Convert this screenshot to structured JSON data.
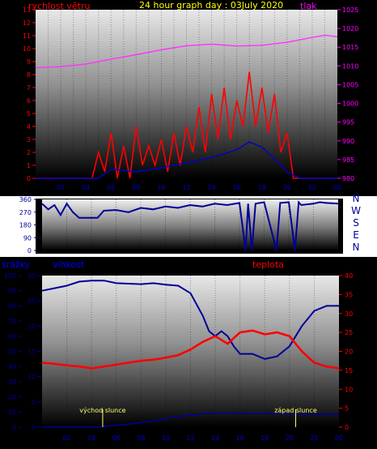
{
  "colors": {
    "frame": "#000000",
    "tick_left": "#ff0000",
    "tick_right_pressure": "#ff00ff",
    "wind": "#ff0000",
    "gust": "#0000cc",
    "pressure": "#ff33ff",
    "direction": "#000099",
    "humidity": "#000099",
    "temperature": "#ff0000",
    "rain": "#000099",
    "title": "#ffff00",
    "label_pressure": "#ff00ff",
    "label_humidity": "#0000ff",
    "label_temp": "#ff0000",
    "label_sun": "#ffff66",
    "compass": "#000099"
  },
  "chart_data": [
    {
      "type": "line",
      "title": "24 hour graph day : 03July 2020",
      "ylabel": "rychlost větru",
      "y2label": "tlak",
      "xticks": [
        "02",
        "04",
        "06",
        "08",
        "10",
        "12",
        "14",
        "16",
        "18",
        "20",
        "22",
        "00"
      ],
      "ylim": [
        0,
        13
      ],
      "yticks": [
        0,
        1,
        2,
        3,
        4,
        5,
        6,
        7,
        8,
        9,
        10,
        11,
        12,
        13
      ],
      "y2lim": [
        980,
        1025
      ],
      "y2ticks": [
        980,
        985,
        990,
        995,
        1000,
        1005,
        1010,
        1015,
        1020,
        1025
      ],
      "series": [
        {
          "axis": "left",
          "points": [
            [
              0,
              0
            ],
            [
              4.5,
              0
            ],
            [
              5,
              2
            ],
            [
              5.5,
              0.5
            ],
            [
              6,
              3.5
            ],
            [
              6.5,
              0
            ],
            [
              7,
              2.5
            ],
            [
              7.5,
              0
            ],
            [
              8,
              4
            ],
            [
              8.5,
              1
            ],
            [
              9,
              2.5
            ],
            [
              9.5,
              1
            ],
            [
              10,
              3
            ],
            [
              10.5,
              0.5
            ],
            [
              11,
              3.5
            ],
            [
              11.5,
              1
            ],
            [
              12,
              4
            ],
            [
              12.5,
              2
            ],
            [
              13,
              5.5
            ],
            [
              13.5,
              2
            ],
            [
              14,
              6.5
            ],
            [
              14.5,
              3
            ],
            [
              15,
              7
            ],
            [
              15.5,
              3
            ],
            [
              16,
              6
            ],
            [
              16.5,
              4
            ],
            [
              17,
              8.2
            ],
            [
              17.5,
              4
            ],
            [
              18,
              7
            ],
            [
              18.5,
              3.5
            ],
            [
              19,
              6.5
            ],
            [
              19.5,
              2
            ],
            [
              20,
              3.5
            ],
            [
              20.5,
              0
            ],
            [
              24,
              0
            ]
          ]
        },
        {
          "axis": "left",
          "points": [
            [
              0,
              0
            ],
            [
              5,
              0
            ],
            [
              6,
              0.7
            ],
            [
              8,
              0.5
            ],
            [
              10,
              0.8
            ],
            [
              12,
              1.2
            ],
            [
              14,
              1.6
            ],
            [
              16,
              2.2
            ],
            [
              17,
              2.8
            ],
            [
              18,
              2.4
            ],
            [
              19,
              1.5
            ],
            [
              20,
              0.5
            ],
            [
              21,
              0
            ],
            [
              24,
              0
            ]
          ]
        },
        {
          "axis": "right",
          "points": [
            [
              0,
              1009.5
            ],
            [
              2,
              1009.8
            ],
            [
              4,
              1010.5
            ],
            [
              6,
              1011.8
            ],
            [
              8,
              1013
            ],
            [
              10,
              1014.3
            ],
            [
              12,
              1015.4
            ],
            [
              14,
              1015.8
            ],
            [
              16,
              1015.3
            ],
            [
              18,
              1015.5
            ],
            [
              20,
              1016.3
            ],
            [
              22,
              1017.6
            ],
            [
              23,
              1018.2
            ],
            [
              24,
              1017.8
            ]
          ]
        }
      ]
    },
    {
      "type": "line",
      "xticks": [
        "02",
        "04",
        "06",
        "08",
        "10",
        "12",
        "14",
        "16",
        "18",
        "20",
        "22",
        "00"
      ],
      "ylim": [
        0,
        360
      ],
      "yticks": [
        0,
        90,
        180,
        270,
        360
      ],
      "compass": [
        "N",
        "W",
        "S",
        "E",
        "N"
      ],
      "series": [
        {
          "points": [
            [
              0,
              330
            ],
            [
              0.5,
              290
            ],
            [
              1,
              320
            ],
            [
              1.5,
              250
            ],
            [
              2,
              330
            ],
            [
              2.5,
              270
            ],
            [
              3,
              230
            ],
            [
              4.5,
              230
            ],
            [
              5,
              280
            ],
            [
              6,
              285
            ],
            [
              7,
              270
            ],
            [
              8,
              300
            ],
            [
              9,
              290
            ],
            [
              10,
              310
            ],
            [
              11,
              300
            ],
            [
              12,
              320
            ],
            [
              13,
              310
            ],
            [
              14,
              330
            ],
            [
              15,
              320
            ],
            [
              16,
              335
            ],
            [
              16.5,
              0
            ],
            [
              16.7,
              330
            ],
            [
              17,
              0
            ],
            [
              17.3,
              330
            ],
            [
              18,
              340
            ],
            [
              19,
              0
            ],
            [
              19.3,
              335
            ],
            [
              20,
              340
            ],
            [
              20.5,
              0
            ],
            [
              20.8,
              340
            ],
            [
              21,
              320
            ],
            [
              22,
              330
            ],
            [
              22.5,
              340
            ],
            [
              23,
              335
            ],
            [
              24,
              330
            ]
          ]
        }
      ]
    },
    {
      "type": "line",
      "y3label": "srážky",
      "ylabel": "vlhkost",
      "y2label": "teplota",
      "xticks": [
        "02",
        "04",
        "06",
        "08",
        "10",
        "12",
        "14",
        "16",
        "18",
        "20",
        "22",
        "00"
      ],
      "ylim_rain": [
        0,
        100
      ],
      "yticks_rain": [
        0,
        10,
        20,
        30,
        40,
        50,
        60,
        70,
        80,
        90,
        100
      ],
      "ylim": [
        0,
        30
      ],
      "yticks": [
        0,
        5,
        10,
        15,
        20,
        25,
        30
      ],
      "y2lim": [
        0,
        40
      ],
      "y2ticks": [
        0,
        5,
        10,
        15,
        20,
        25,
        30,
        35,
        40
      ],
      "annotations": [
        {
          "text": "východ slunce",
          "x": 4.9
        },
        {
          "text": "západ slunce",
          "x": 20.5
        }
      ],
      "series": [
        {
          "axis": "left",
          "points": [
            [
              0,
              27
            ],
            [
              1,
              27.5
            ],
            [
              2,
              28
            ],
            [
              3,
              28.8
            ],
            [
              4,
              29
            ],
            [
              5,
              29
            ],
            [
              6,
              28.5
            ],
            [
              7,
              28.4
            ],
            [
              8,
              28.3
            ],
            [
              9,
              28.5
            ],
            [
              10,
              28.2
            ],
            [
              11,
              28
            ],
            [
              12,
              26.5
            ],
            [
              13,
              22
            ],
            [
              13.5,
              19
            ],
            [
              14,
              18
            ],
            [
              14.5,
              19
            ],
            [
              15,
              18
            ],
            [
              15.5,
              16
            ],
            [
              16,
              14.5
            ],
            [
              17,
              14.5
            ],
            [
              18,
              13.5
            ],
            [
              19,
              14
            ],
            [
              20,
              16
            ],
            [
              21,
              20
            ],
            [
              22,
              23
            ],
            [
              23,
              24
            ],
            [
              24,
              24
            ]
          ]
        },
        {
          "axis": "right",
          "points": [
            [
              0,
              17
            ],
            [
              1,
              16.7
            ],
            [
              2,
              16.3
            ],
            [
              3,
              16
            ],
            [
              4,
              15.5
            ],
            [
              5,
              16
            ],
            [
              6,
              16.5
            ],
            [
              7,
              17
            ],
            [
              8,
              17.5
            ],
            [
              9,
              17.8
            ],
            [
              10,
              18.3
            ],
            [
              11,
              19
            ],
            [
              12,
              20.5
            ],
            [
              13,
              22.5
            ],
            [
              14,
              24
            ],
            [
              15,
              22
            ],
            [
              16,
              25
            ],
            [
              17,
              25.5
            ],
            [
              18,
              24.5
            ],
            [
              19,
              25
            ],
            [
              20,
              24
            ],
            [
              21,
              20
            ],
            [
              22,
              17
            ],
            [
              23,
              16
            ],
            [
              24,
              15.5
            ]
          ]
        },
        {
          "axis": "rain",
          "points": [
            [
              0,
              0
            ],
            [
              4.5,
              0
            ],
            [
              5,
              0.5
            ],
            [
              7,
              2
            ],
            [
              9,
              4
            ],
            [
              11,
              7
            ],
            [
              13,
              9
            ],
            [
              15,
              9
            ],
            [
              17,
              9
            ],
            [
              19,
              8.8
            ],
            [
              21,
              8.5
            ],
            [
              23,
              8.5
            ],
            [
              24,
              8.5
            ]
          ]
        }
      ]
    }
  ]
}
